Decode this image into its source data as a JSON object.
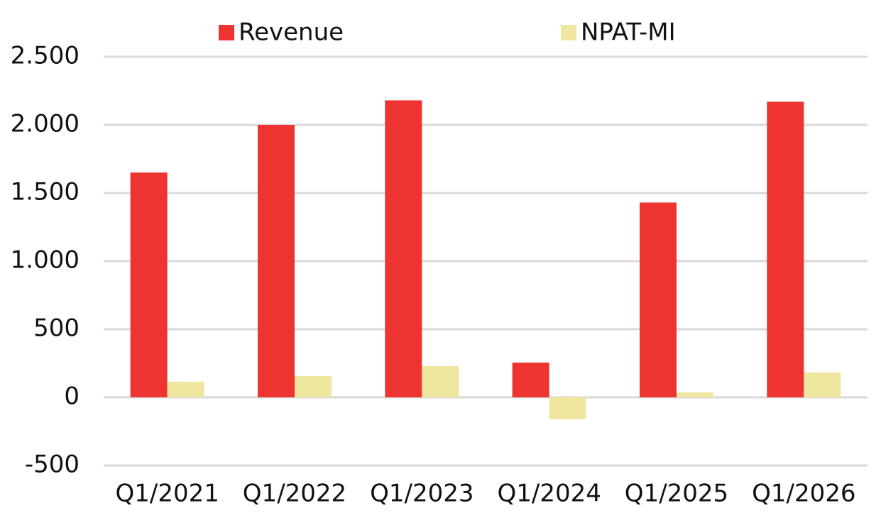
{
  "chart_data": {
    "type": "bar",
    "categories": [
      "Q1/2021",
      "Q1/2022",
      "Q1/2023",
      "Q1/2024",
      "Q1/2025",
      "Q1/2026"
    ],
    "series": [
      {
        "name": "Revenue",
        "color": "#ee3431",
        "values": [
          1650,
          2000,
          2180,
          255,
          1430,
          2170
        ]
      },
      {
        "name": "NPAT-MI",
        "color": "#efe6a0",
        "values": [
          115,
          156,
          229,
          -160,
          36,
          182
        ]
      }
    ],
    "ylim": [
      -500,
      2500
    ],
    "yticks": [
      -500,
      0,
      500,
      {
        "value": 1000,
        "label": "1.000"
      },
      {
        "value": 1500,
        "label": "1.500"
      },
      {
        "value": 2000,
        "label": "2.000"
      },
      {
        "value": 2500,
        "label": "2.500"
      }
    ],
    "grid": true,
    "legend": "top"
  }
}
